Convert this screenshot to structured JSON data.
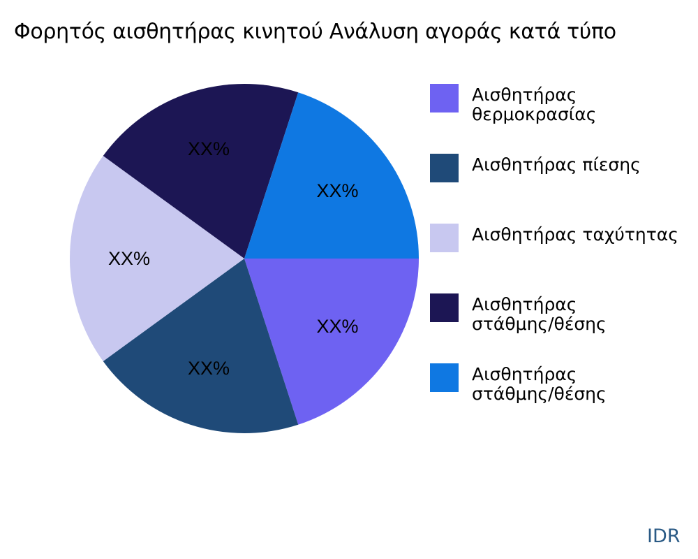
{
  "chart": {
    "title": "Φορητός αισθητήρας κινητού Ανάλυση αγοράς κατά τύπο",
    "watermark": "IDR"
  },
  "legend": {
    "items": [
      {
        "label": "Αισθητήρας\nθερμοκρασίας",
        "color": "#6e62f2"
      },
      {
        "label": "Αισθητήρας πίεσης",
        "color": "#1f4a78"
      },
      {
        "label": "Αισθητήρας ταχύτητας",
        "color": "#c8c8f0"
      },
      {
        "label": "Αισθητήρας\nστάθμης/θέσης",
        "color": "#1c1654"
      },
      {
        "label": "Αισθητήρας\nστάθμης/θέσης",
        "color": "#0f78e2"
      }
    ]
  },
  "chart_data": {
    "type": "pie",
    "title": "Φορητός αισθητήρας κινητού Ανάλυση αγοράς κατά τύπο",
    "categories": [
      "Αισθητήρας θερμοκρασίας",
      "Αισθητήρας πίεσης",
      "Αισθητήρας ταχύτητας",
      "Αισθητήρας στάθμης/θέσης",
      "Αισθητήρας στάθμης/θέσης"
    ],
    "values": [
      20,
      20,
      20,
      20,
      20
    ],
    "data_labels": [
      "XX%",
      "XX%",
      "XX%",
      "XX%",
      "XX%"
    ],
    "colors": [
      "#6e62f2",
      "#1f4a78",
      "#c8c8f0",
      "#1c1654",
      "#0f78e2"
    ],
    "start_angle_deg": 0,
    "direction": "clockwise",
    "legend_position": "right"
  }
}
